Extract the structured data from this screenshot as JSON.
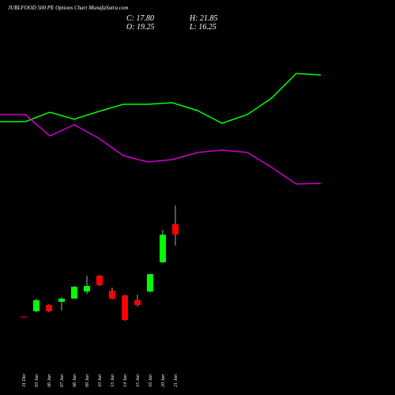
{
  "chart_data": {
    "type": "candlestick",
    "title": "JUBLFOOD 500 PE Options Chart MunafaSutra.com",
    "info": {
      "close": "C: 17.80",
      "open": "O: 19.25",
      "high": "H: 21.85",
      "low": "L: 16.25"
    },
    "categories": [
      "31 Dec",
      "03 Jan",
      "06 Jan",
      "07 Jan",
      "08 Jan",
      "09 Jan",
      "10 Jan",
      "13 Jan",
      "14 Jan",
      "15 Jan",
      "16 Jan",
      "20 Jan",
      "21 Jan"
    ],
    "open": [
      6.35,
      7.11,
      7.99,
      8.43,
      8.87,
      9.86,
      12.06,
      9.97,
      9.31,
      8.65,
      9.86,
      13.93,
      19.25
    ],
    "high": [
      6.35,
      8.85,
      8.1,
      9.09,
      10.63,
      12.06,
      12.17,
      10.41,
      9.42,
      9.42,
      12.28,
      18.44,
      21.85
    ],
    "low": [
      6.3,
      7.0,
      7.0,
      7.22,
      8.87,
      9.53,
      10.63,
      8.76,
      5.79,
      7.77,
      9.75,
      13.82,
      16.25
    ],
    "close": [
      6.3,
      8.65,
      7.11,
      8.87,
      10.52,
      10.63,
      10.74,
      8.87,
      5.9,
      7.99,
      12.28,
      17.78,
      17.8
    ],
    "up_color": "#00ff00",
    "down_color": "#ff0000"
  }
}
